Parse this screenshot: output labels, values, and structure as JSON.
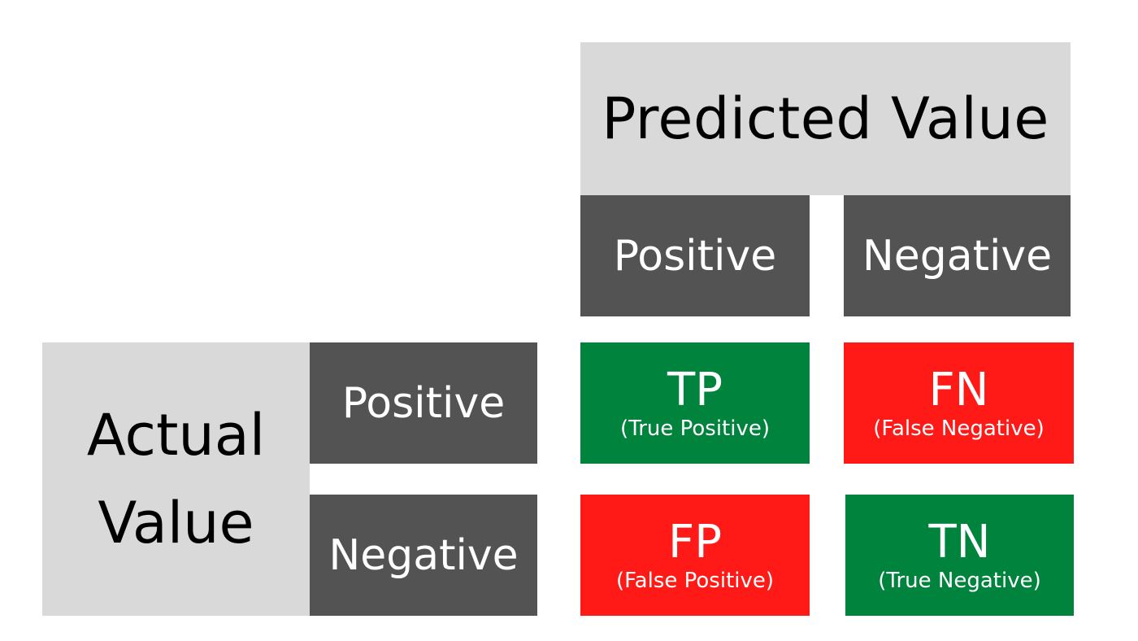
{
  "predicted": {
    "title": "Predicted Value",
    "columns": [
      "Positive",
      "Negative"
    ]
  },
  "actual": {
    "title_line1": "Actual",
    "title_line2": "Value",
    "rows": [
      "Positive",
      "Negative"
    ]
  },
  "cells": {
    "tp": {
      "abbr": "TP",
      "full": "(True Positive)"
    },
    "fn": {
      "abbr": "FN",
      "full": "(False Negative)"
    },
    "fp": {
      "abbr": "FP",
      "full": "(False Positive)"
    },
    "tn": {
      "abbr": "TN",
      "full": "(True Negative)"
    }
  },
  "colors": {
    "header_light": "#d9d9d9",
    "header_dark": "#535353",
    "correct": "#00843d",
    "incorrect": "#ff1a17"
  }
}
